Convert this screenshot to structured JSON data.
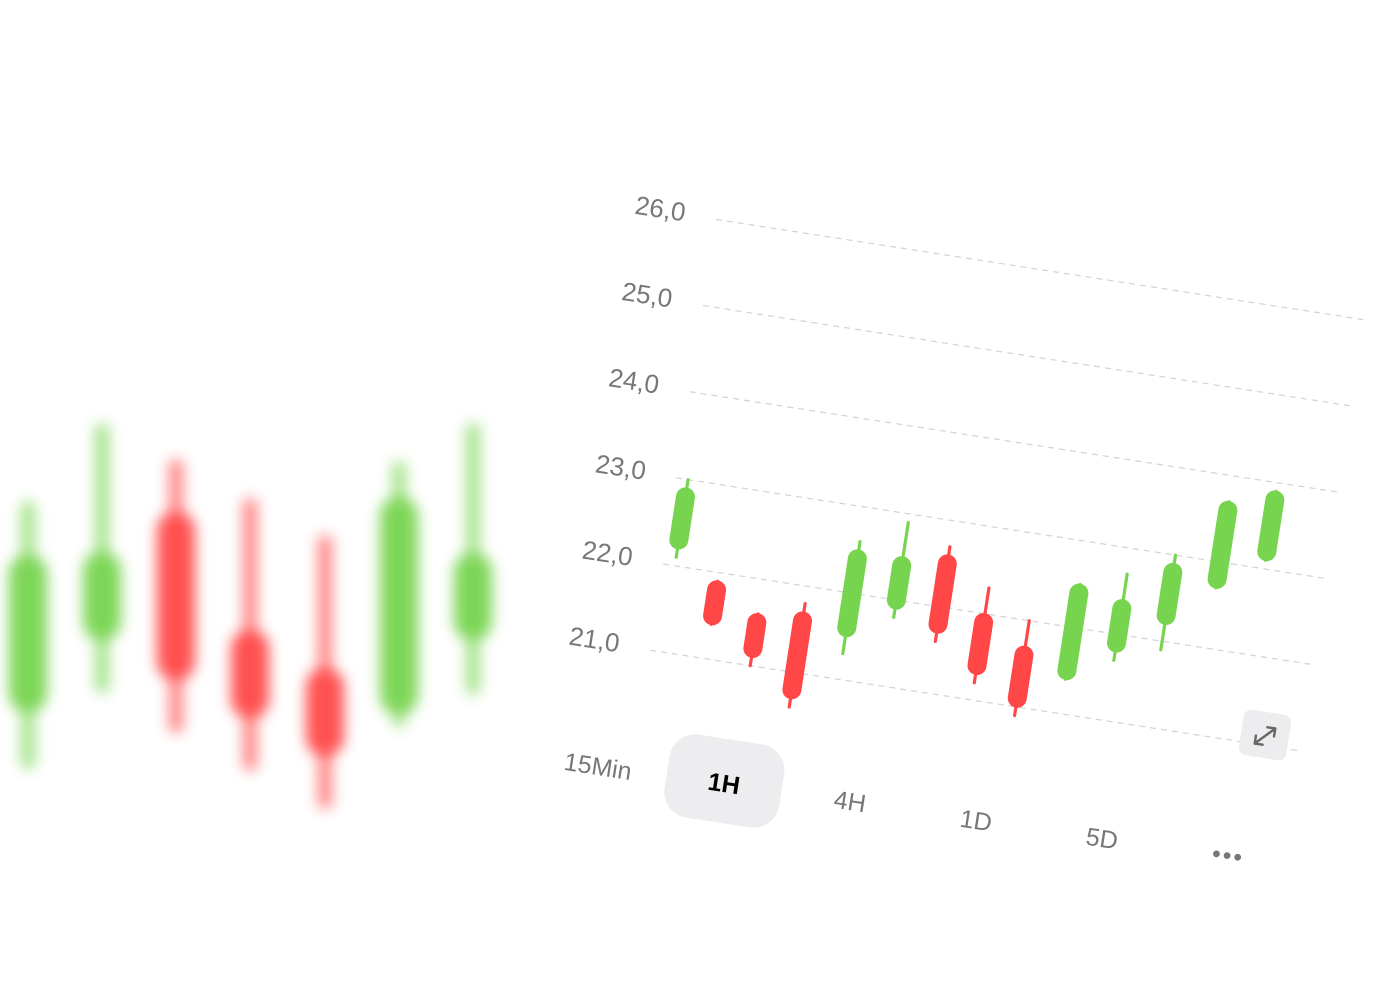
{
  "colors": {
    "up": "#77d44f",
    "down": "#ff4747",
    "grid": "#d2d2d2",
    "label": "#777777",
    "active_bg": "#ededef",
    "active_text": "#000000"
  },
  "chart_data": {
    "type": "candlestick",
    "title": "",
    "xlabel": "",
    "ylabel": "",
    "y_ticks": [
      "26,0",
      "25,0",
      "24,0",
      "23,0",
      "22,0",
      "21,0"
    ],
    "ylim": [
      21,
      26
    ],
    "grid": true,
    "candles": [
      {
        "open": 22.3,
        "close": 22.8,
        "high": 23.0,
        "low": 22.1
      },
      {
        "open": 21.8,
        "close": 21.5,
        "high": 21.9,
        "low": 21.4
      },
      {
        "open": 21.5,
        "close": 21.2,
        "high": 21.6,
        "low": 21.0
      },
      {
        "open": 21.6,
        "close": 20.8,
        "high": 21.8,
        "low": 20.6
      },
      {
        "open": 21.6,
        "close": 22.4,
        "high": 22.6,
        "low": 21.3
      },
      {
        "open": 22.0,
        "close": 22.4,
        "high": 22.9,
        "low": 21.8
      },
      {
        "open": 22.5,
        "close": 21.8,
        "high": 22.7,
        "low": 21.6
      },
      {
        "open": 21.9,
        "close": 21.4,
        "high": 22.3,
        "low": 21.2
      },
      {
        "open": 21.6,
        "close": 21.1,
        "high": 22.0,
        "low": 20.9
      },
      {
        "open": 21.5,
        "close": 22.4,
        "high": 22.5,
        "low": 21.4
      },
      {
        "open": 21.9,
        "close": 22.3,
        "high": 22.7,
        "low": 21.7
      },
      {
        "open": 22.3,
        "close": 22.8,
        "high": 23.0,
        "low": 21.9
      },
      {
        "open": 22.8,
        "close": 23.6,
        "high": 23.7,
        "low": 22.7
      },
      {
        "open": 23.2,
        "close": 23.8,
        "high": 23.9,
        "low": 23.1
      }
    ],
    "blurred_background_candles": [
      {
        "open": 1,
        "close": 0
      },
      {
        "open": 1,
        "close": 0
      },
      {
        "open": 0,
        "close": 1
      },
      {
        "open": 0,
        "close": 1
      },
      {
        "open": 0,
        "close": 1
      },
      {
        "open": 1,
        "close": 0
      },
      {
        "open": 1,
        "close": 0
      }
    ]
  },
  "timeframes": {
    "items": [
      "15Min",
      "1H",
      "4H",
      "1D",
      "5D"
    ],
    "selected": "1H",
    "more_label": "•••"
  },
  "icons": {
    "expand": "expand-icon"
  }
}
